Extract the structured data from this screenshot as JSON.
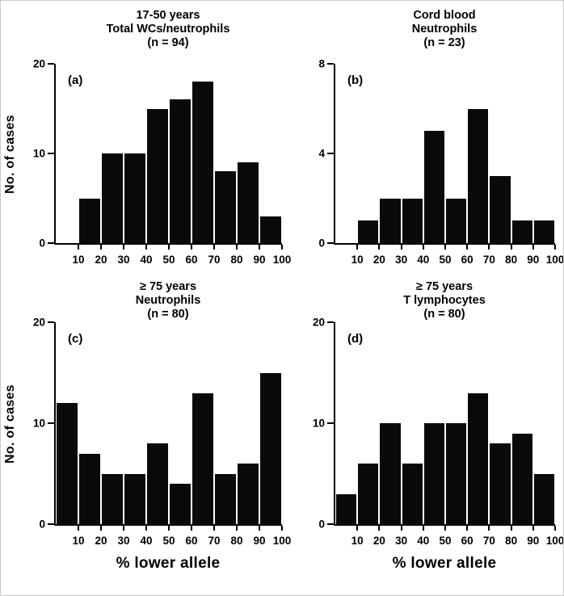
{
  "figure": {
    "background": "#ffffff",
    "bar_color": "#0a0a0a",
    "axis_color": "#000000",
    "shared_xlabel": "% lower allele",
    "shared_ylabel": "No. of cases"
  },
  "chart_data": [
    {
      "type": "bar",
      "panel_label": "(a)",
      "title_lines": [
        "17-50 years",
        "Total WCs/neutrophils",
        "(n = 94)"
      ],
      "n": 94,
      "ylabel": "No. of cases",
      "xlim": [
        0,
        100
      ],
      "ylim": [
        0,
        20
      ],
      "yticks": [
        0,
        10,
        20
      ],
      "xticks": [
        10,
        20,
        30,
        40,
        50,
        60,
        70,
        80,
        90,
        100
      ],
      "bin_width": 10,
      "bin_start": 10,
      "values": [
        5,
        10,
        10,
        15,
        16,
        18,
        8,
        9,
        3
      ],
      "grid": false,
      "legend": null
    },
    {
      "type": "bar",
      "panel_label": "(b)",
      "title_lines": [
        "Cord blood",
        "Neutrophils",
        "(n = 23)"
      ],
      "n": 23,
      "xlim": [
        0,
        100
      ],
      "ylim": [
        0,
        8
      ],
      "yticks": [
        0,
        4,
        8
      ],
      "xticks": [
        10,
        20,
        30,
        40,
        50,
        60,
        70,
        80,
        90,
        100
      ],
      "bin_width": 10,
      "bin_start": 10,
      "values": [
        1,
        2,
        2,
        5,
        2,
        6,
        3,
        1,
        1
      ],
      "grid": false,
      "legend": null
    },
    {
      "type": "bar",
      "panel_label": "(c)",
      "title_lines": [
        "≥ 75 years",
        "Neutrophils",
        "(n = 80)"
      ],
      "n": 80,
      "ylabel": "No. of cases",
      "xlabel": "% lower allele",
      "xlim": [
        0,
        100
      ],
      "ylim": [
        0,
        20
      ],
      "yticks": [
        0,
        10,
        20
      ],
      "xticks": [
        10,
        20,
        30,
        40,
        50,
        60,
        70,
        80,
        90,
        100
      ],
      "bin_width": 10,
      "bin_start": 0,
      "values": [
        12,
        7,
        5,
        5,
        8,
        4,
        13,
        5,
        6,
        15
      ],
      "grid": false,
      "legend": null
    },
    {
      "type": "bar",
      "panel_label": "(d)",
      "title_lines": [
        "≥ 75 years",
        "T lymphocytes",
        "(n = 80)"
      ],
      "n": 80,
      "xlabel": "% lower allele",
      "xlim": [
        0,
        100
      ],
      "ylim": [
        0,
        20
      ],
      "yticks": [
        0,
        10,
        20
      ],
      "xticks": [
        10,
        20,
        30,
        40,
        50,
        60,
        70,
        80,
        90,
        100
      ],
      "bin_width": 10,
      "bin_start": 0,
      "values": [
        3,
        6,
        10,
        6,
        10,
        10,
        13,
        8,
        9,
        5
      ],
      "grid": false,
      "legend": null
    }
  ]
}
